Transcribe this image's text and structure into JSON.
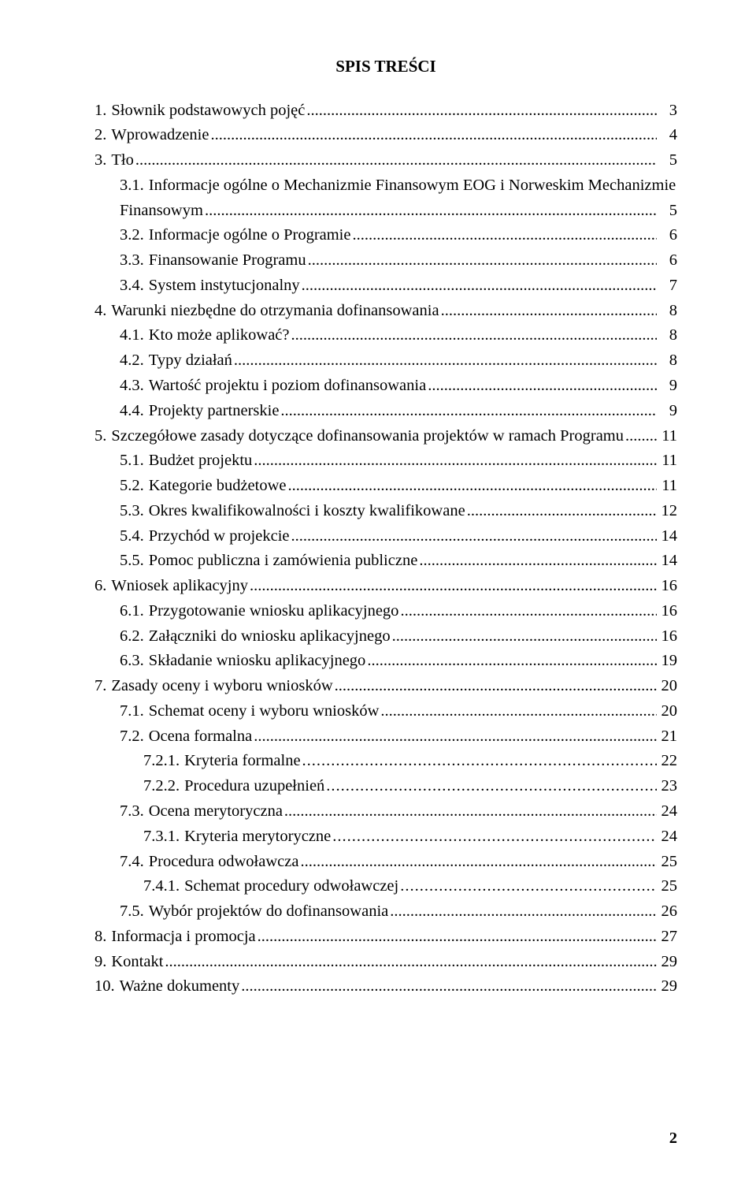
{
  "title": "SPIS TREŚCI",
  "page_number": "2",
  "font": {
    "family": "Times New Roman",
    "body_size_pt": 15,
    "title_size_pt": 15,
    "title_weight": "bold",
    "color": "#000000",
    "background": "#ffffff"
  },
  "toc": [
    {
      "level": 0,
      "num": "1.",
      "label": "Słownik podstawowych pojęć",
      "page": "3"
    },
    {
      "level": 0,
      "num": "2.",
      "label": "Wprowadzenie",
      "page": "4"
    },
    {
      "level": 0,
      "num": "3.",
      "label": "Tło",
      "page": "5"
    },
    {
      "level": 1,
      "num": "3.1.",
      "label": "Informacje ogólne o Mechanizmie Finansowym EOG i Norweskim Mechanizmie Finansowym",
      "page": "5",
      "wrap": true
    },
    {
      "level": 1,
      "num": "3.2.",
      "label": "Informacje ogólne o Programie",
      "page": "6"
    },
    {
      "level": 1,
      "num": "3.3.",
      "label": "Finansowanie Programu",
      "page": "6"
    },
    {
      "level": 1,
      "num": "3.4.",
      "label": "System instytucjonalny",
      "page": "7"
    },
    {
      "level": 0,
      "num": "4.",
      "label": "Warunki niezbędne do otrzymania dofinansowania",
      "page": "8"
    },
    {
      "level": 1,
      "num": "4.1.",
      "label": "Kto może aplikować?",
      "page": "8"
    },
    {
      "level": 1,
      "num": "4.2.",
      "label": "Typy działań",
      "page": "8"
    },
    {
      "level": 1,
      "num": "4.3.",
      "label": "Wartość projektu i poziom dofinansowania",
      "page": "9"
    },
    {
      "level": 1,
      "num": "4.4.",
      "label": "Projekty partnerskie",
      "page": "9"
    },
    {
      "level": 0,
      "num": "5.",
      "label": "Szczegółowe zasady dotyczące dofinansowania projektów w ramach Programu",
      "page": "11"
    },
    {
      "level": 1,
      "num": "5.1.",
      "label": "Budżet projektu",
      "page": "11"
    },
    {
      "level": 1,
      "num": "5.2.",
      "label": "Kategorie budżetowe",
      "page": "11"
    },
    {
      "level": 1,
      "num": "5.3.",
      "label": "Okres kwalifikowalności i koszty kwalifikowane",
      "page": "12"
    },
    {
      "level": 1,
      "num": "5.4.",
      "label": "Przychód w projekcie",
      "page": "14"
    },
    {
      "level": 1,
      "num": "5.5.",
      "label": "Pomoc publiczna i zamówienia publiczne",
      "page": "14"
    },
    {
      "level": 0,
      "num": "6.",
      "label": "Wniosek aplikacyjny",
      "page": "16"
    },
    {
      "level": 1,
      "num": "6.1.",
      "label": "Przygotowanie wniosku aplikacyjnego",
      "page": "16"
    },
    {
      "level": 1,
      "num": "6.2.",
      "label": "Załączniki do wniosku aplikacyjnego",
      "page": "16"
    },
    {
      "level": 1,
      "num": "6.3.",
      "label": "Składanie wniosku aplikacyjnego",
      "page": "19"
    },
    {
      "level": 0,
      "num": "7.",
      "label": "Zasady oceny i wyboru wniosków",
      "page": "20"
    },
    {
      "level": 1,
      "num": "7.1.",
      "label": "Schemat oceny i wyboru wniosków",
      "page": "20"
    },
    {
      "level": 1,
      "num": "7.2.",
      "label": "Ocena formalna",
      "page": "21"
    },
    {
      "level": 2,
      "num": "7.2.1.",
      "label": "Kryteria formalne",
      "page": "22"
    },
    {
      "level": 2,
      "num": "7.2.2.",
      "label": "Procedura uzupełnień",
      "page": "23"
    },
    {
      "level": 1,
      "num": "7.3.",
      "label": "Ocena merytoryczna",
      "page": "24"
    },
    {
      "level": 2,
      "num": "7.3.1.",
      "label": "Kryteria merytoryczne",
      "page": "24"
    },
    {
      "level": 1,
      "num": "7.4.",
      "label": "Procedura odwoławcza",
      "page": "25"
    },
    {
      "level": 2,
      "num": "7.4.1.",
      "label": "Schemat procedury odwoławczej",
      "page": "25"
    },
    {
      "level": 1,
      "num": "7.5.",
      "label": "Wybór projektów do dofinansowania",
      "page": "26"
    },
    {
      "level": 0,
      "num": "8.",
      "label": "Informacja i promocja",
      "page": "27"
    },
    {
      "level": 0,
      "num": "9.",
      "label": "Kontakt",
      "page": "29"
    },
    {
      "level": 0,
      "num": "10.",
      "label": "Ważne dokumenty",
      "page": "29"
    }
  ]
}
